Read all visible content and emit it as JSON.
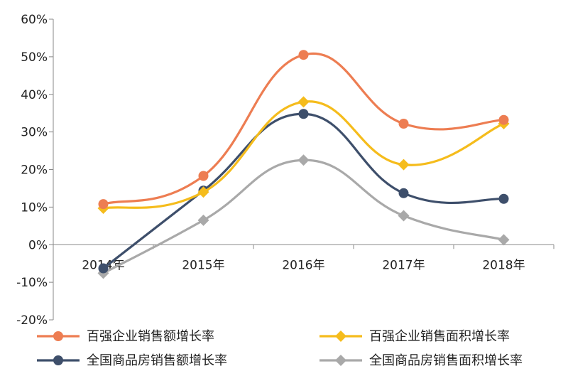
{
  "chart_data": {
    "type": "line",
    "categories": [
      "2014年",
      "2015年",
      "2016年",
      "2017年",
      "2018年"
    ],
    "series": [
      {
        "name": "百强企业销售额增长率",
        "color": "#ED7D52",
        "marker": "circle",
        "values": [
          10.8,
          18.3,
          50.5,
          32.2,
          33.2
        ]
      },
      {
        "name": "百强企业销售面积增长率",
        "color": "#F5BC1C",
        "marker": "diamond",
        "values": [
          9.7,
          14.0,
          38.0,
          21.3,
          32.2
        ]
      },
      {
        "name": "全国商品房销售额增长率",
        "color": "#3E4F6B",
        "marker": "circle",
        "values": [
          -6.3,
          14.4,
          34.8,
          13.7,
          12.2
        ]
      },
      {
        "name": "全国商品房销售面积增长率",
        "color": "#A9A9A9",
        "marker": "diamond",
        "values": [
          -7.6,
          6.5,
          22.5,
          7.7,
          1.3
        ]
      }
    ],
    "ylim": [
      -20,
      60
    ],
    "yticks": [
      "-20%",
      "-10%",
      "0%",
      "10%",
      "20%",
      "30%",
      "40%",
      "50%",
      "60%"
    ],
    "grid": false,
    "legend_position": "bottom"
  }
}
